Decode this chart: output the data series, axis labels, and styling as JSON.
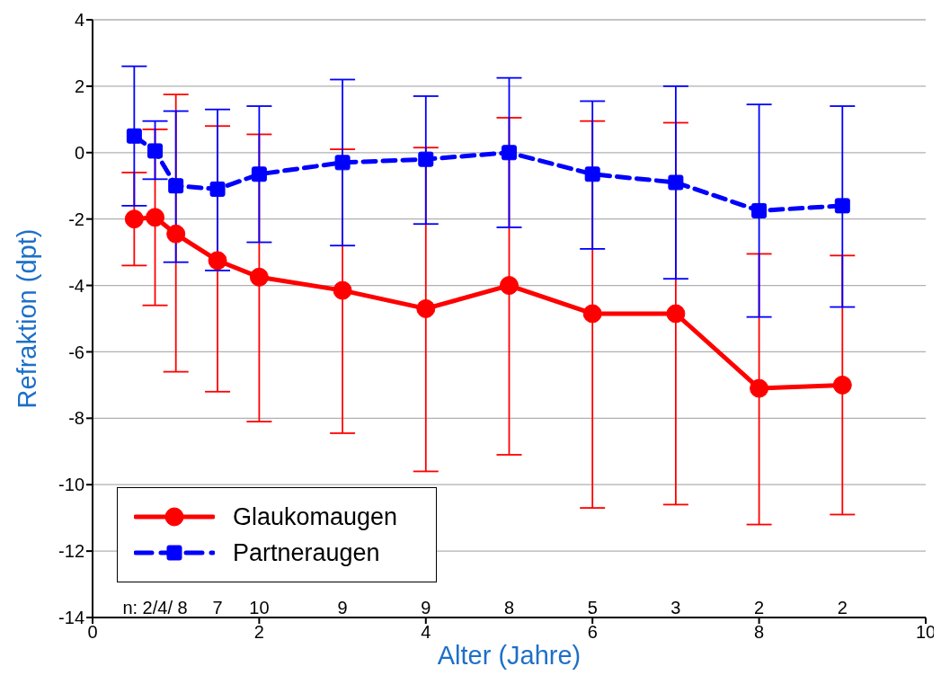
{
  "chart_data": {
    "type": "line",
    "xlabel": "Alter (Jahre)",
    "ylabel": "Refraktion (dpt)",
    "xlim": [
      0,
      10
    ],
    "xticks": [
      0,
      2,
      4,
      6,
      8,
      10
    ],
    "ylim": [
      -14,
      4
    ],
    "yticks": [
      -14,
      -12,
      -10,
      -8,
      -6,
      -4,
      -2,
      0,
      2,
      4
    ],
    "grid": "y",
    "legend": "bottom left",
    "series": [
      {
        "name": "Glaukomaugen",
        "color": "#ff0000",
        "marker": "circle",
        "line_style": "solid",
        "x": [
          0.5,
          0.75,
          1,
          1.5,
          2,
          3,
          4,
          5,
          6,
          7,
          8,
          9
        ],
        "values": [
          -2.0,
          -1.95,
          -2.45,
          -3.25,
          -3.75,
          -4.15,
          -4.7,
          -4.0,
          -4.85,
          -4.85,
          -7.1,
          -7.0
        ],
        "errors": [
          [
            -3.4,
            -0.6
          ],
          [
            -4.6,
            0.7
          ],
          [
            -6.6,
            1.75
          ],
          [
            -7.2,
            0.8
          ],
          [
            -8.1,
            0.55
          ],
          [
            -8.45,
            0.1
          ],
          [
            -9.6,
            0.15
          ],
          [
            -9.1,
            1.05
          ],
          [
            -10.7,
            0.95
          ],
          [
            -10.6,
            0.9
          ],
          [
            -11.2,
            -3.05
          ],
          [
            -10.9,
            -3.1
          ]
        ]
      },
      {
        "name": "Partneraugen",
        "color": "#0000ff",
        "marker": "square",
        "line_style": "dashed",
        "x": [
          0.5,
          0.75,
          1,
          1.5,
          2,
          3,
          4,
          5,
          6,
          7,
          8,
          9
        ],
        "values": [
          0.5,
          0.05,
          -1.0,
          -1.1,
          -0.65,
          -0.3,
          -0.2,
          0.0,
          -0.65,
          -0.9,
          -1.75,
          -1.6
        ],
        "errors": [
          [
            -1.6,
            2.6
          ],
          [
            -0.8,
            0.95
          ],
          [
            -3.3,
            1.25
          ],
          [
            -3.55,
            1.3
          ],
          [
            -2.7,
            1.4
          ],
          [
            -2.8,
            2.2
          ],
          [
            -2.15,
            1.7
          ],
          [
            -2.25,
            2.25
          ],
          [
            -2.9,
            1.55
          ],
          [
            -3.8,
            2.0
          ],
          [
            -4.95,
            1.45
          ],
          [
            -4.65,
            1.4
          ]
        ]
      }
    ],
    "annotations": [
      "n: 2/4/ 8",
      "7",
      "10",
      "9",
      "9",
      "8",
      "5",
      "3",
      "2",
      "2"
    ]
  }
}
